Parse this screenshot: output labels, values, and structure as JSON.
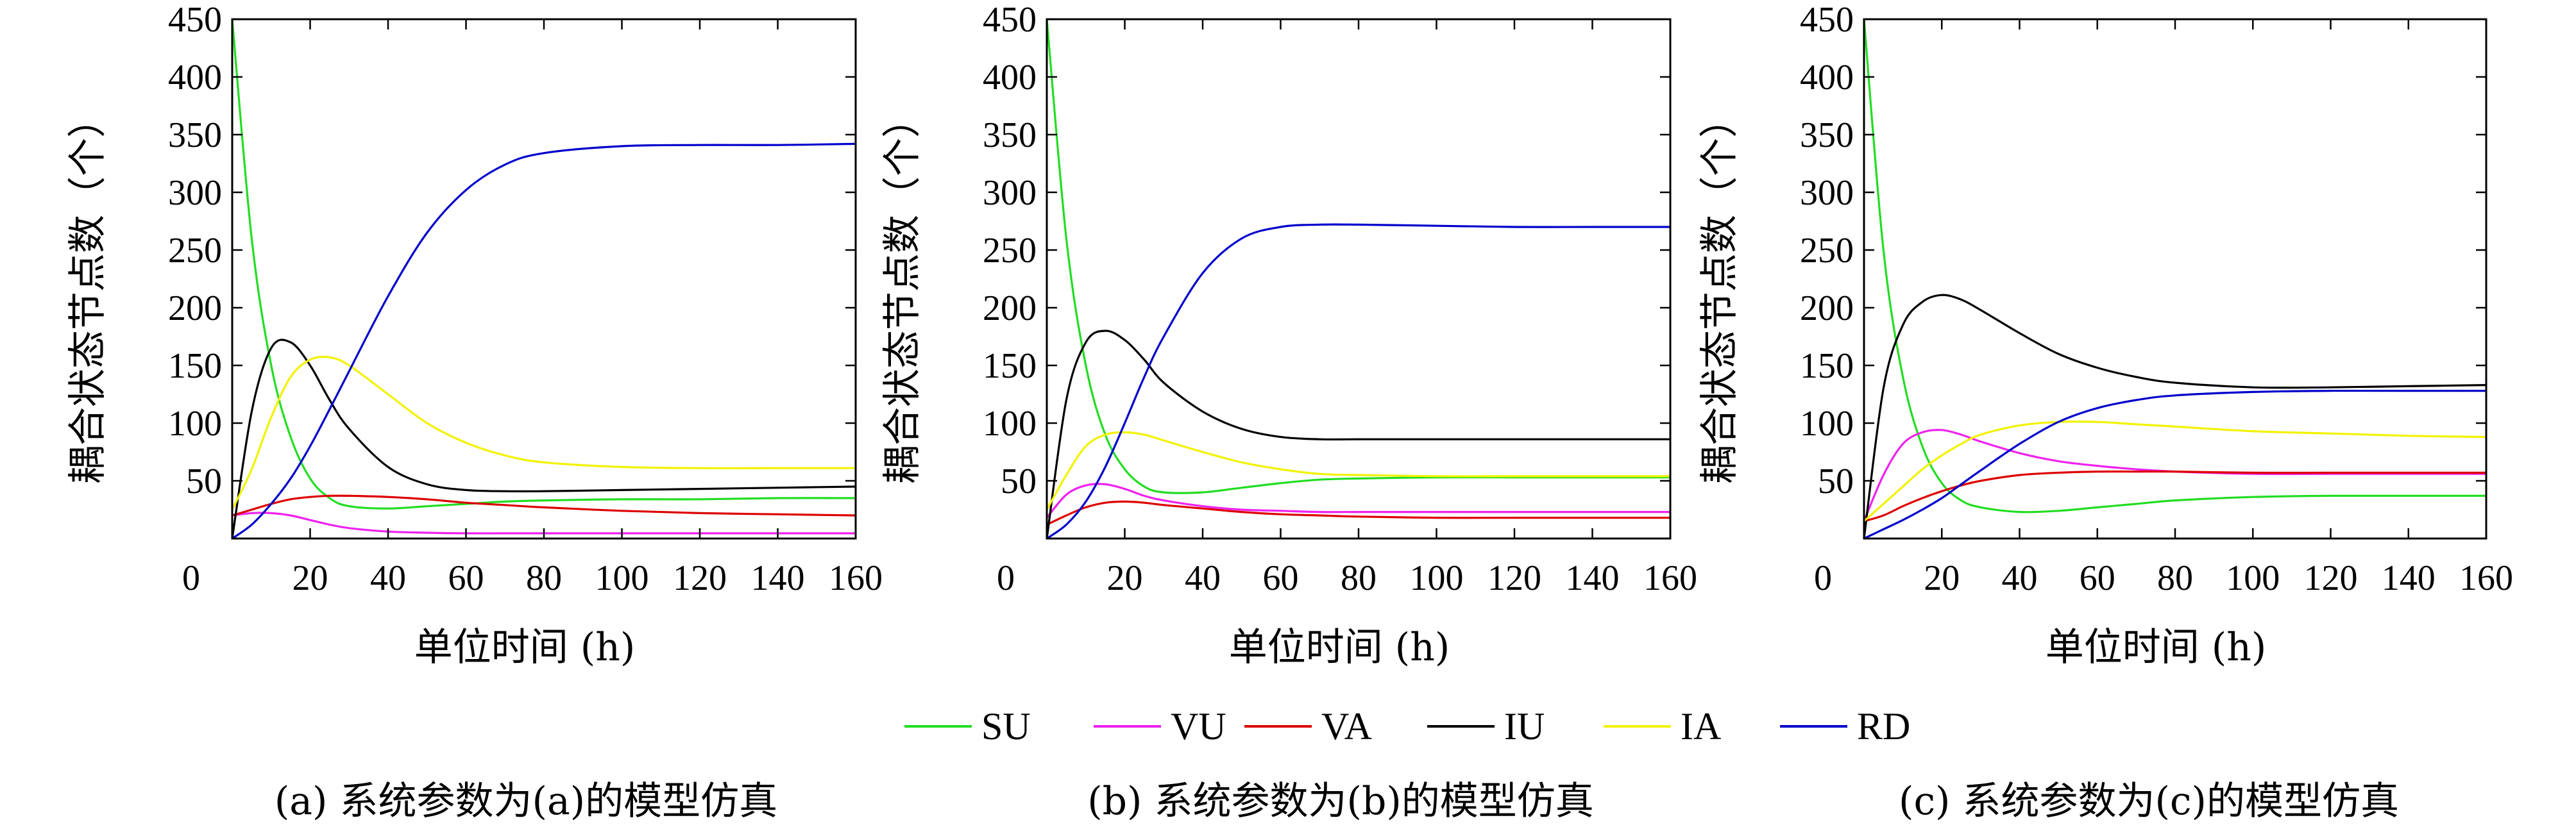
{
  "legend": {
    "placement": "bottom-center",
    "entries": [
      {
        "name": "SU",
        "color": "#22dd22"
      },
      {
        "name": "VU",
        "color": "#ee22ee"
      },
      {
        "name": "VA",
        "color": "#dd0000"
      },
      {
        "name": "IU",
        "color": "#000000"
      },
      {
        "name": "IA",
        "color": "#f2f200"
      },
      {
        "name": "RD",
        "color": "#0000cc"
      }
    ]
  },
  "chart_data": [
    {
      "type": "line",
      "caption": "(a) 系统参数为(a)的模型仿真",
      "xlabel": "单位时间 (h)",
      "ylabel": "耦合状态节点数（个）",
      "xlim": [
        0,
        160
      ],
      "ylim": [
        0,
        450
      ],
      "xticks": [
        0,
        20,
        40,
        60,
        80,
        100,
        120,
        140,
        160
      ],
      "yticks": [
        50,
        100,
        150,
        200,
        250,
        300,
        350,
        400,
        450
      ],
      "grid": false,
      "x": [
        0,
        5,
        10,
        15,
        20,
        25,
        30,
        40,
        50,
        60,
        70,
        80,
        100,
        120,
        140,
        160
      ],
      "series": [
        {
          "name": "SU",
          "values": [
            450,
            260,
            150,
            88,
            52,
            35,
            28,
            26,
            28,
            30,
            32,
            33,
            34,
            34,
            35,
            35
          ]
        },
        {
          "name": "VU",
          "values": [
            20,
            22,
            22,
            20,
            16,
            12,
            9,
            6,
            5,
            4.5,
            4.5,
            4.5,
            4.5,
            4.5,
            4.5,
            4.5
          ]
        },
        {
          "name": "VA",
          "values": [
            20,
            25,
            30,
            34,
            36,
            37,
            37,
            36,
            34,
            31,
            29,
            27,
            24,
            22,
            21,
            20
          ]
        },
        {
          "name": "IU",
          "values": [
            0,
            110,
            165,
            170,
            150,
            120,
            95,
            62,
            47,
            42,
            41,
            41,
            42,
            43,
            44,
            45
          ]
        },
        {
          "name": "IA",
          "values": [
            25,
            60,
            105,
            140,
            155,
            157,
            150,
            125,
            100,
            83,
            72,
            66,
            62,
            61,
            61,
            61
          ]
        },
        {
          "name": "RD",
          "values": [
            0,
            12,
            30,
            52,
            80,
            112,
            145,
            210,
            265,
            302,
            324,
            334,
            340,
            341,
            341,
            342
          ]
        }
      ]
    },
    {
      "type": "line",
      "caption": "(b) 系统参数为(b)的模型仿真",
      "xlabel": "单位时间 (h)",
      "ylabel": "耦合状态节点数（个）",
      "xlim": [
        0,
        160
      ],
      "ylim": [
        0,
        450
      ],
      "xticks": [
        0,
        20,
        40,
        60,
        80,
        100,
        120,
        140,
        160
      ],
      "yticks": [
        50,
        100,
        150,
        200,
        250,
        300,
        350,
        400,
        450
      ],
      "grid": false,
      "x": [
        0,
        5,
        10,
        15,
        20,
        25,
        30,
        40,
        50,
        60,
        70,
        80,
        100,
        120,
        140,
        160
      ],
      "series": [
        {
          "name": "SU",
          "values": [
            450,
            260,
            150,
            90,
            60,
            45,
            40,
            40,
            44,
            48,
            51,
            52,
            53,
            53,
            53,
            53
          ]
        },
        {
          "name": "VU",
          "values": [
            18,
            38,
            46,
            47,
            43,
            37,
            33,
            28,
            25,
            24,
            23,
            23,
            23,
            23,
            23,
            23
          ]
        },
        {
          "name": "VA",
          "values": [
            12,
            20,
            27,
            31,
            32,
            31,
            29,
            26,
            23,
            21,
            20,
            19,
            18,
            18,
            18,
            18
          ]
        },
        {
          "name": "IU",
          "values": [
            0,
            120,
            170,
            180,
            172,
            155,
            135,
            110,
            95,
            88,
            86,
            86,
            86,
            86,
            86,
            86
          ]
        },
        {
          "name": "IA",
          "values": [
            25,
            55,
            80,
            90,
            92,
            90,
            85,
            75,
            66,
            60,
            56,
            55,
            54,
            54,
            54,
            54
          ]
        },
        {
          "name": "RD",
          "values": [
            0,
            12,
            32,
            62,
            100,
            140,
            175,
            230,
            260,
            270,
            272,
            272,
            271,
            270,
            270,
            270
          ]
        }
      ]
    },
    {
      "type": "line",
      "caption": "(c) 系统参数为(c)的模型仿真",
      "xlabel": "单位时间 (h)",
      "ylabel": "耦合状态节点数（个）",
      "xlim": [
        0,
        160
      ],
      "ylim": [
        0,
        450
      ],
      "xticks": [
        0,
        20,
        40,
        60,
        80,
        100,
        120,
        140,
        160
      ],
      "yticks": [
        50,
        100,
        150,
        200,
        250,
        300,
        350,
        400,
        450
      ],
      "grid": false,
      "x": [
        0,
        5,
        10,
        15,
        20,
        25,
        30,
        40,
        50,
        60,
        70,
        80,
        100,
        120,
        140,
        160
      ],
      "series": [
        {
          "name": "SU",
          "values": [
            450,
            250,
            140,
            80,
            48,
            33,
            27,
            23,
            24,
            27,
            30,
            33,
            36,
            37,
            37,
            37
          ]
        },
        {
          "name": "VU",
          "values": [
            15,
            55,
            82,
            92,
            94,
            90,
            84,
            74,
            67,
            63,
            60,
            58,
            56,
            56,
            56,
            56
          ]
        },
        {
          "name": "VA",
          "values": [
            15,
            20,
            28,
            35,
            41,
            46,
            50,
            55,
            57,
            58,
            58,
            58,
            57,
            57,
            57,
            57
          ]
        },
        {
          "name": "IU",
          "values": [
            0,
            130,
            185,
            205,
            211,
            207,
            198,
            178,
            160,
            148,
            140,
            135,
            131,
            131,
            132,
            133
          ]
        },
        {
          "name": "IA",
          "values": [
            15,
            30,
            45,
            60,
            72,
            82,
            90,
            98,
            101,
            101,
            99,
            97,
            93,
            91,
            89,
            88
          ]
        },
        {
          "name": "RD",
          "values": [
            0,
            8,
            16,
            25,
            35,
            47,
            59,
            82,
            101,
            113,
            120,
            124,
            127,
            128,
            128,
            128
          ]
        }
      ]
    }
  ]
}
